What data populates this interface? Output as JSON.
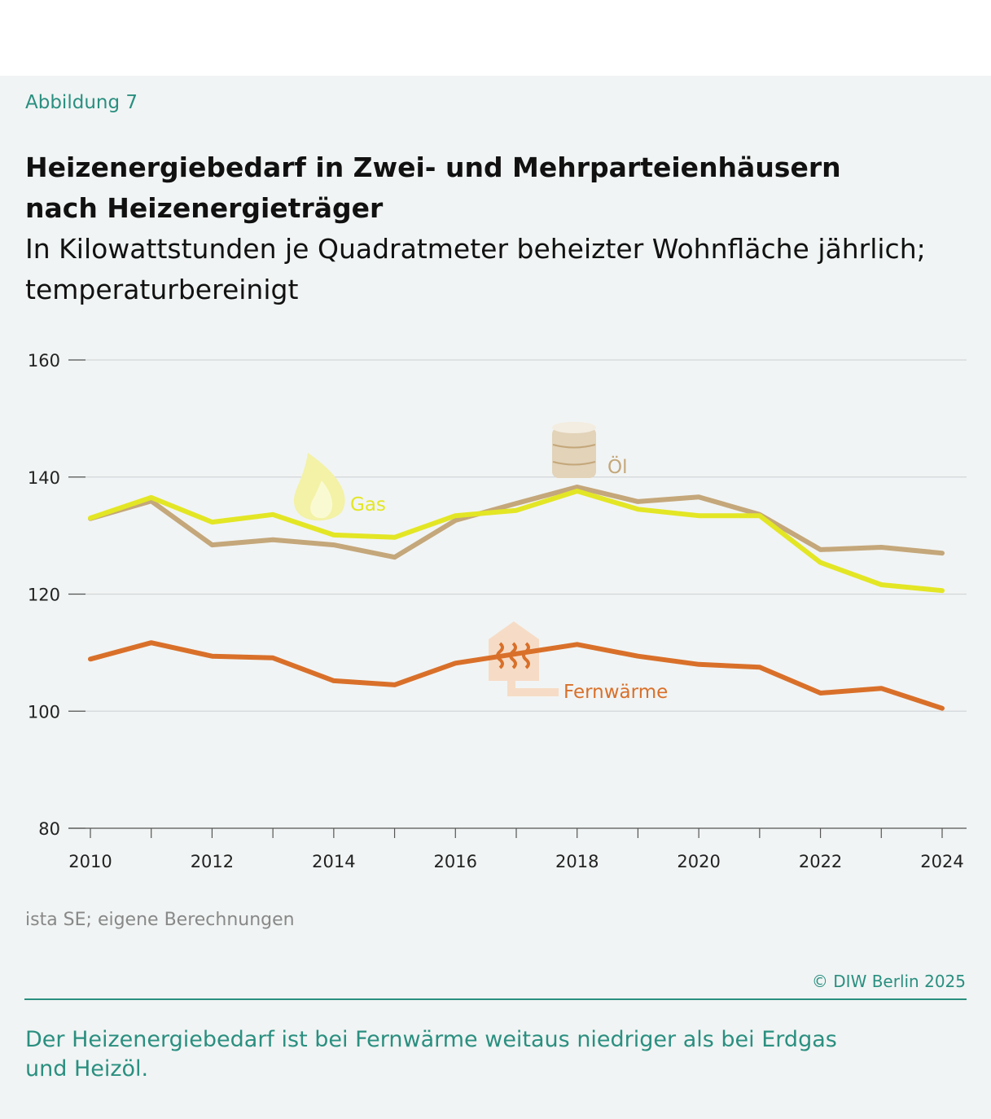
{
  "figure_label": "Abbildung 7",
  "title": "Heizenergiebedarf in Zwei- und Mehrparteienhäusern nach Heizenergieträger",
  "subtitle": "In Kilowattstunden je Quadratmeter beheizter Wohnfläche jährlich; temperaturbereinigt",
  "source": "ista SE; eigene Berechnungen",
  "copyright": "© DIW Berlin 2025",
  "note": "Der Heizenergiebedarf ist bei Fernwärme weitaus niedriger als bei Erdgas und Heizöl.",
  "chart_data": {
    "type": "line",
    "x": [
      2010,
      2011,
      2012,
      2013,
      2014,
      2015,
      2016,
      2017,
      2018,
      2019,
      2020,
      2021,
      2022,
      2023,
      2024
    ],
    "xticks": [
      "2010",
      "2012",
      "2014",
      "2016",
      "2018",
      "2020",
      "2022",
      "2024"
    ],
    "yticks": [
      "80",
      "100",
      "120",
      "140",
      "160"
    ],
    "ylim": [
      80,
      160
    ],
    "grid": true,
    "series": [
      {
        "name": "Gas",
        "color": "#e3e624",
        "icon": "flame-icon",
        "values": [
          133.0,
          136.5,
          132.3,
          133.6,
          130.1,
          129.7,
          133.4,
          134.3,
          137.6,
          134.5,
          133.4,
          133.4,
          125.4,
          121.6,
          120.6
        ]
      },
      {
        "name": "Öl",
        "color": "#c4a77a",
        "icon": "oil-barrel-icon",
        "values": [
          132.9,
          135.9,
          128.4,
          129.3,
          128.4,
          126.3,
          132.6,
          135.5,
          138.3,
          135.8,
          136.6,
          133.6,
          127.6,
          128.0,
          127.0
        ]
      },
      {
        "name": "Fernwärme",
        "color": "#d9702a",
        "icon": "district-heating-icon",
        "values": [
          108.9,
          111.7,
          109.4,
          109.1,
          105.2,
          104.5,
          108.2,
          109.8,
          111.4,
          109.4,
          108.0,
          107.5,
          103.1,
          103.9,
          100.5
        ]
      }
    ]
  }
}
